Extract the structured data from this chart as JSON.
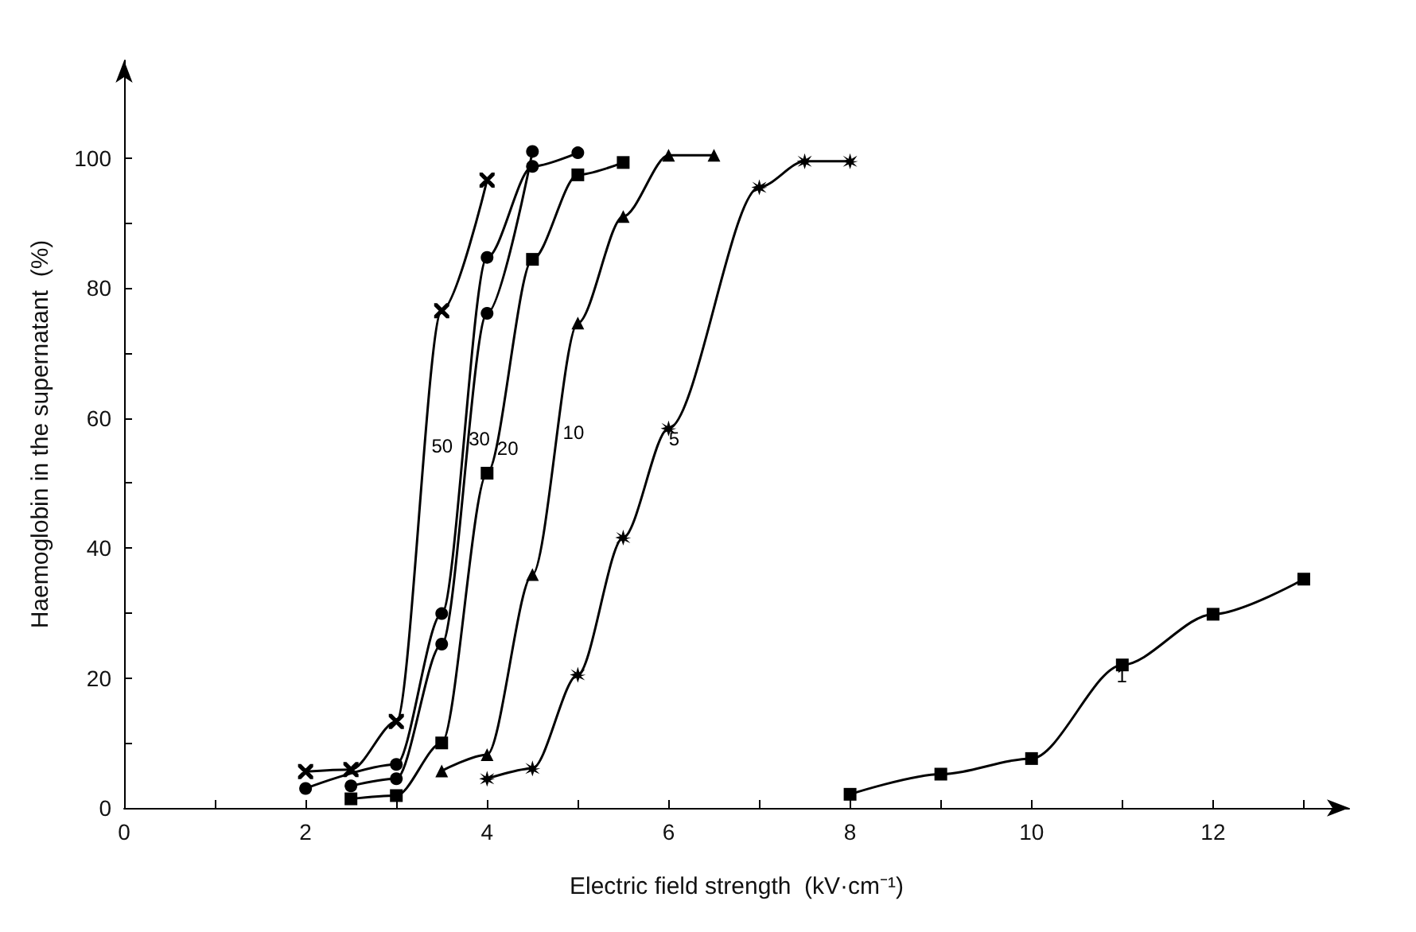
{
  "chart_data": {
    "type": "line",
    "xlabel": "Electric field strength  (kV·cm⁻¹)",
    "ylabel": "Haemoglobin in the supernatant  (%)",
    "xlim": [
      0,
      13.5
    ],
    "ylim": [
      0,
      115
    ],
    "xticks": [
      0,
      {
        "value": 1,
        "label": null
      },
      2,
      {
        "value": 3,
        "label": null
      },
      4,
      {
        "value": 5,
        "label": null
      },
      6,
      {
        "value": 7,
        "label": null
      },
      8,
      {
        "value": 9,
        "label": null
      },
      10,
      {
        "value": 11,
        "label": null
      },
      12,
      {
        "value": 13,
        "label": null
      }
    ],
    "yticks": [
      0,
      {
        "value": 10,
        "label": null
      },
      20,
      {
        "value": 30,
        "label": null
      },
      40,
      {
        "value": 50,
        "label": null
      },
      60,
      {
        "value": 70,
        "label": null
      },
      80,
      {
        "value": 90,
        "label": null
      },
      100
    ],
    "grid": false,
    "legend": false,
    "line_style": "solid",
    "series": [
      {
        "name": "50",
        "color": "#000000",
        "marker": "cross",
        "x": [
          2,
          2.5,
          3,
          3.5,
          4
        ],
        "values": [
          5.6,
          5.9,
          13.3,
          76.5,
          96.6
        ]
      },
      {
        "name": "30",
        "color": "#000000",
        "marker": "circle",
        "x": [
          2,
          3,
          3.5,
          4,
          4.5,
          5
        ],
        "values": [
          3.0,
          6.7,
          29.9,
          84.7,
          98.7,
          100.8
        ]
      },
      {
        "color": "#000000",
        "marker": "circle",
        "x": [
          2.5,
          3,
          3.5,
          4,
          4.5
        ],
        "values": [
          3.4,
          4.5,
          25.2,
          76.1,
          101
        ]
      },
      {
        "name": "20",
        "color": "#000000",
        "marker": "square",
        "x": [
          2.5,
          3,
          3.5,
          4,
          4.5,
          5,
          5.5
        ],
        "values": [
          1.4,
          1.9,
          10,
          51.5,
          84.4,
          97.4,
          99.3
        ]
      },
      {
        "name": "10",
        "color": "#000000",
        "marker": "triangle",
        "x": [
          3.5,
          4,
          4.5,
          5,
          5.5,
          6,
          6.5
        ],
        "values": [
          5.7,
          8.2,
          35.9,
          74.6,
          91,
          100.4,
          100.4
        ]
      },
      {
        "name": "5",
        "color": "#000000",
        "marker": "star",
        "x": [
          4,
          4.5,
          5,
          5.5,
          6,
          7,
          7.5,
          8
        ],
        "values": [
          4.5,
          6.1,
          20.5,
          41.6,
          58.4,
          95.5,
          99.5,
          99.5
        ]
      },
      {
        "name": "1",
        "color": "#000000",
        "marker": "square",
        "x": [
          8,
          9,
          10,
          11,
          12,
          13
        ],
        "values": [
          2.1,
          5.2,
          7.6,
          22,
          29.8,
          35.2
        ]
      }
    ]
  }
}
